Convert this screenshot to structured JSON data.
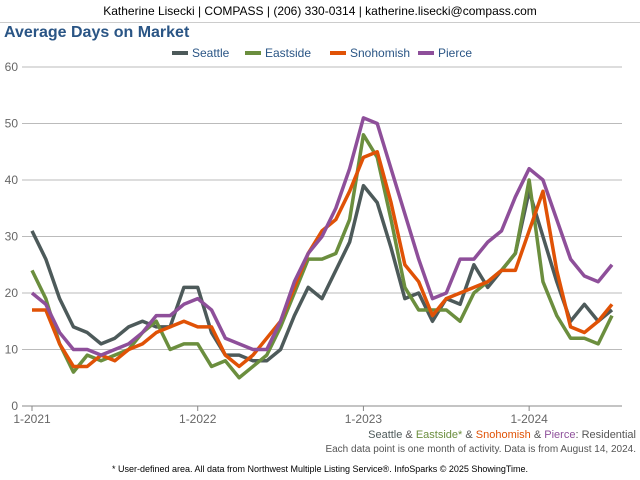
{
  "header": {
    "text": "Katherine Lisecki | COMPASS | (206) 330-0314 | katherine.lisecki@compass.com"
  },
  "chart_data": {
    "type": "line",
    "title": "Average Days on Market",
    "xlabel": "",
    "ylabel": "",
    "ylim": [
      0,
      60
    ],
    "yticks": [
      "0",
      "10",
      "20",
      "30",
      "40",
      "50",
      "60"
    ],
    "xticks": [
      {
        "label": "1-2021",
        "index": 0
      },
      {
        "label": "1-2022",
        "index": 12
      },
      {
        "label": "1-2023",
        "index": 24
      },
      {
        "label": "1-2024",
        "index": 36
      }
    ],
    "x_start": "1-2021",
    "x_end": "7-2024",
    "legend_placement": "top",
    "series": [
      {
        "name": "Seattle",
        "color": "#4d5a5a",
        "values": [
          31,
          26,
          19,
          14,
          13,
          11,
          12,
          14,
          15,
          14,
          14,
          21,
          21,
          13,
          9,
          9,
          8,
          8,
          10,
          16,
          21,
          19,
          24,
          29,
          39,
          36,
          28,
          19,
          20,
          15,
          19,
          18,
          25,
          21,
          24,
          27,
          38,
          30,
          22,
          15,
          18,
          15,
          17
        ]
      },
      {
        "name": "Eastside",
        "color": "#6b8e3e",
        "values": [
          24,
          19,
          11,
          6,
          9,
          8,
          9,
          10,
          13,
          15,
          10,
          11,
          11,
          7,
          8,
          5,
          7,
          9,
          14,
          20,
          26,
          26,
          27,
          33,
          48,
          44,
          33,
          21,
          17,
          17,
          17,
          15,
          20,
          22,
          24,
          27,
          40,
          22,
          16,
          12,
          12,
          11,
          16
        ]
      },
      {
        "name": "Snohomish",
        "color": "#e05206",
        "values": [
          17,
          17,
          11,
          7,
          7,
          9,
          8,
          10,
          11,
          13,
          14,
          15,
          14,
          14,
          9,
          7,
          9,
          12,
          15,
          21,
          27,
          31,
          33,
          38,
          44,
          45,
          36,
          25,
          22,
          16,
          19,
          20,
          21,
          22,
          24,
          24,
          31,
          38,
          24,
          14,
          13,
          15,
          18
        ]
      },
      {
        "name": "Pierce",
        "color": "#8e4f9a",
        "values": [
          20,
          18,
          13,
          10,
          10,
          9,
          10,
          11,
          13,
          16,
          16,
          18,
          19,
          17,
          12,
          11,
          10,
          10,
          15,
          22,
          27,
          30,
          35,
          42,
          51,
          50,
          42,
          34,
          26,
          19,
          20,
          26,
          26,
          29,
          31,
          37,
          42,
          40,
          33,
          26,
          23,
          22,
          25
        ]
      }
    ]
  },
  "footer": {
    "areas": [
      {
        "text": "Seattle",
        "color": "#4d5a5a"
      },
      {
        "text": " & ",
        "color": "#555"
      },
      {
        "text": "Eastside*",
        "color": "#6b8e3e"
      },
      {
        "text": " & ",
        "color": "#555"
      },
      {
        "text": "Snohomish",
        "color": "#e05206"
      },
      {
        "text": " & ",
        "color": "#555"
      },
      {
        "text": "Pierce",
        "color": "#8e4f9a"
      },
      {
        "text": ": Residential",
        "color": "#555"
      }
    ],
    "note": "Each data point is one month of activity. Data is from August 14, 2024.",
    "disclaimer": "* User-defined area. All data from Northwest Multiple Listing Service®. InfoSparks © 2025 ShowingTime."
  }
}
